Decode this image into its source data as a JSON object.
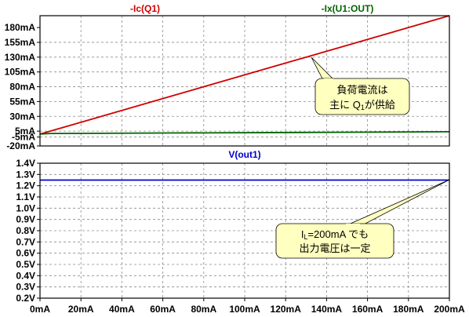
{
  "chart_data": [
    {
      "type": "line",
      "xlim": [
        0,
        200
      ],
      "ylim": [
        -20,
        200
      ],
      "x_unit": "mA",
      "y_unit": "mA",
      "y_ticks": [
        "-20mA",
        "-5mA",
        "5mA",
        "30mA",
        "55mA",
        "80mA",
        "105mA",
        "130mA",
        "155mA",
        "180mA"
      ],
      "grid": true,
      "series": [
        {
          "name": "-Ic(Q1)",
          "color": "#d00000",
          "points": [
            [
              0,
              0
            ],
            [
              200,
              200
            ]
          ]
        },
        {
          "name": "-Ix(U1:OUT)",
          "color": "#006400",
          "points": [
            [
              0,
              0
            ],
            [
              5,
              1
            ],
            [
              72,
              2
            ],
            [
              143,
              3
            ],
            [
              200,
              4
            ]
          ]
        }
      ],
      "annotation": {
        "lines": [
          "負荷電流は",
          "主に Q",
          "が供給"
        ],
        "subscript": "1",
        "points_to": [
          130,
          130
        ]
      }
    },
    {
      "type": "line",
      "xlim": [
        0,
        200
      ],
      "ylim": [
        0.2,
        1.4
      ],
      "x_unit": "mA",
      "y_unit": "V",
      "y_ticks": [
        "0.2V",
        "0.3V",
        "0.4V",
        "0.5V",
        "0.6V",
        "0.7V",
        "0.8V",
        "0.9V",
        "1.0V",
        "1.1V",
        "1.2V",
        "1.3V",
        "1.4V"
      ],
      "x_ticks": [
        "0mA",
        "20mA",
        "40mA",
        "60mA",
        "80mA",
        "100mA",
        "120mA",
        "140mA",
        "160mA",
        "180mA",
        "200mA"
      ],
      "grid": true,
      "series": [
        {
          "name": "V(out1)",
          "color": "#0000cc",
          "points": [
            [
              0,
              1.25
            ],
            [
              200,
              1.25
            ]
          ]
        }
      ],
      "annotation": {
        "lines": [
          "I",
          "=200mA でも",
          "出力電圧は一定"
        ],
        "subscript": "L",
        "points_to": [
          200,
          1.25
        ]
      }
    }
  ]
}
